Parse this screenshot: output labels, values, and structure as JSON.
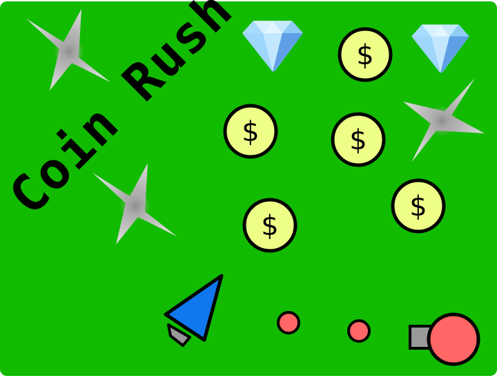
{
  "game": {
    "title": "Coin Rush",
    "coin_symbol": "$",
    "colors": {
      "field": "#11bb00",
      "coin_fill": "#eeff88",
      "enemy_ball": "#ff6666",
      "player_ship": "#1177ee",
      "cannon_barrel": "#999999",
      "outline": "#000000"
    },
    "coins": [
      "$",
      "$",
      "$",
      "$",
      "$",
      "$"
    ],
    "gems": [
      "diamond-icon",
      "diamond-icon"
    ],
    "spikes": [
      "shuriken-icon",
      "shuriken-icon",
      "shuriken-icon"
    ]
  }
}
